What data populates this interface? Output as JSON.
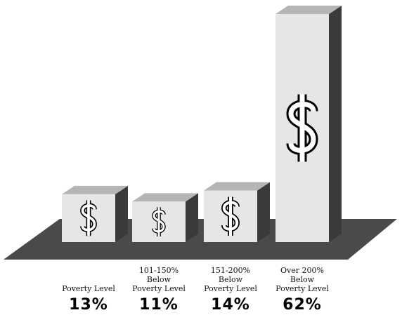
{
  "chart_data": {
    "type": "bar3d",
    "categories": [
      "Poverty Level",
      "101-150%\nBelow\nPoverty Level",
      "151-200%\nBelow\nPoverty Level",
      "Over 200%\nBelow\nPoverty Level"
    ],
    "values": [
      13,
      11,
      14,
      62
    ],
    "value_labels": [
      "13%",
      "11%",
      "14%",
      "62%"
    ]
  }
}
